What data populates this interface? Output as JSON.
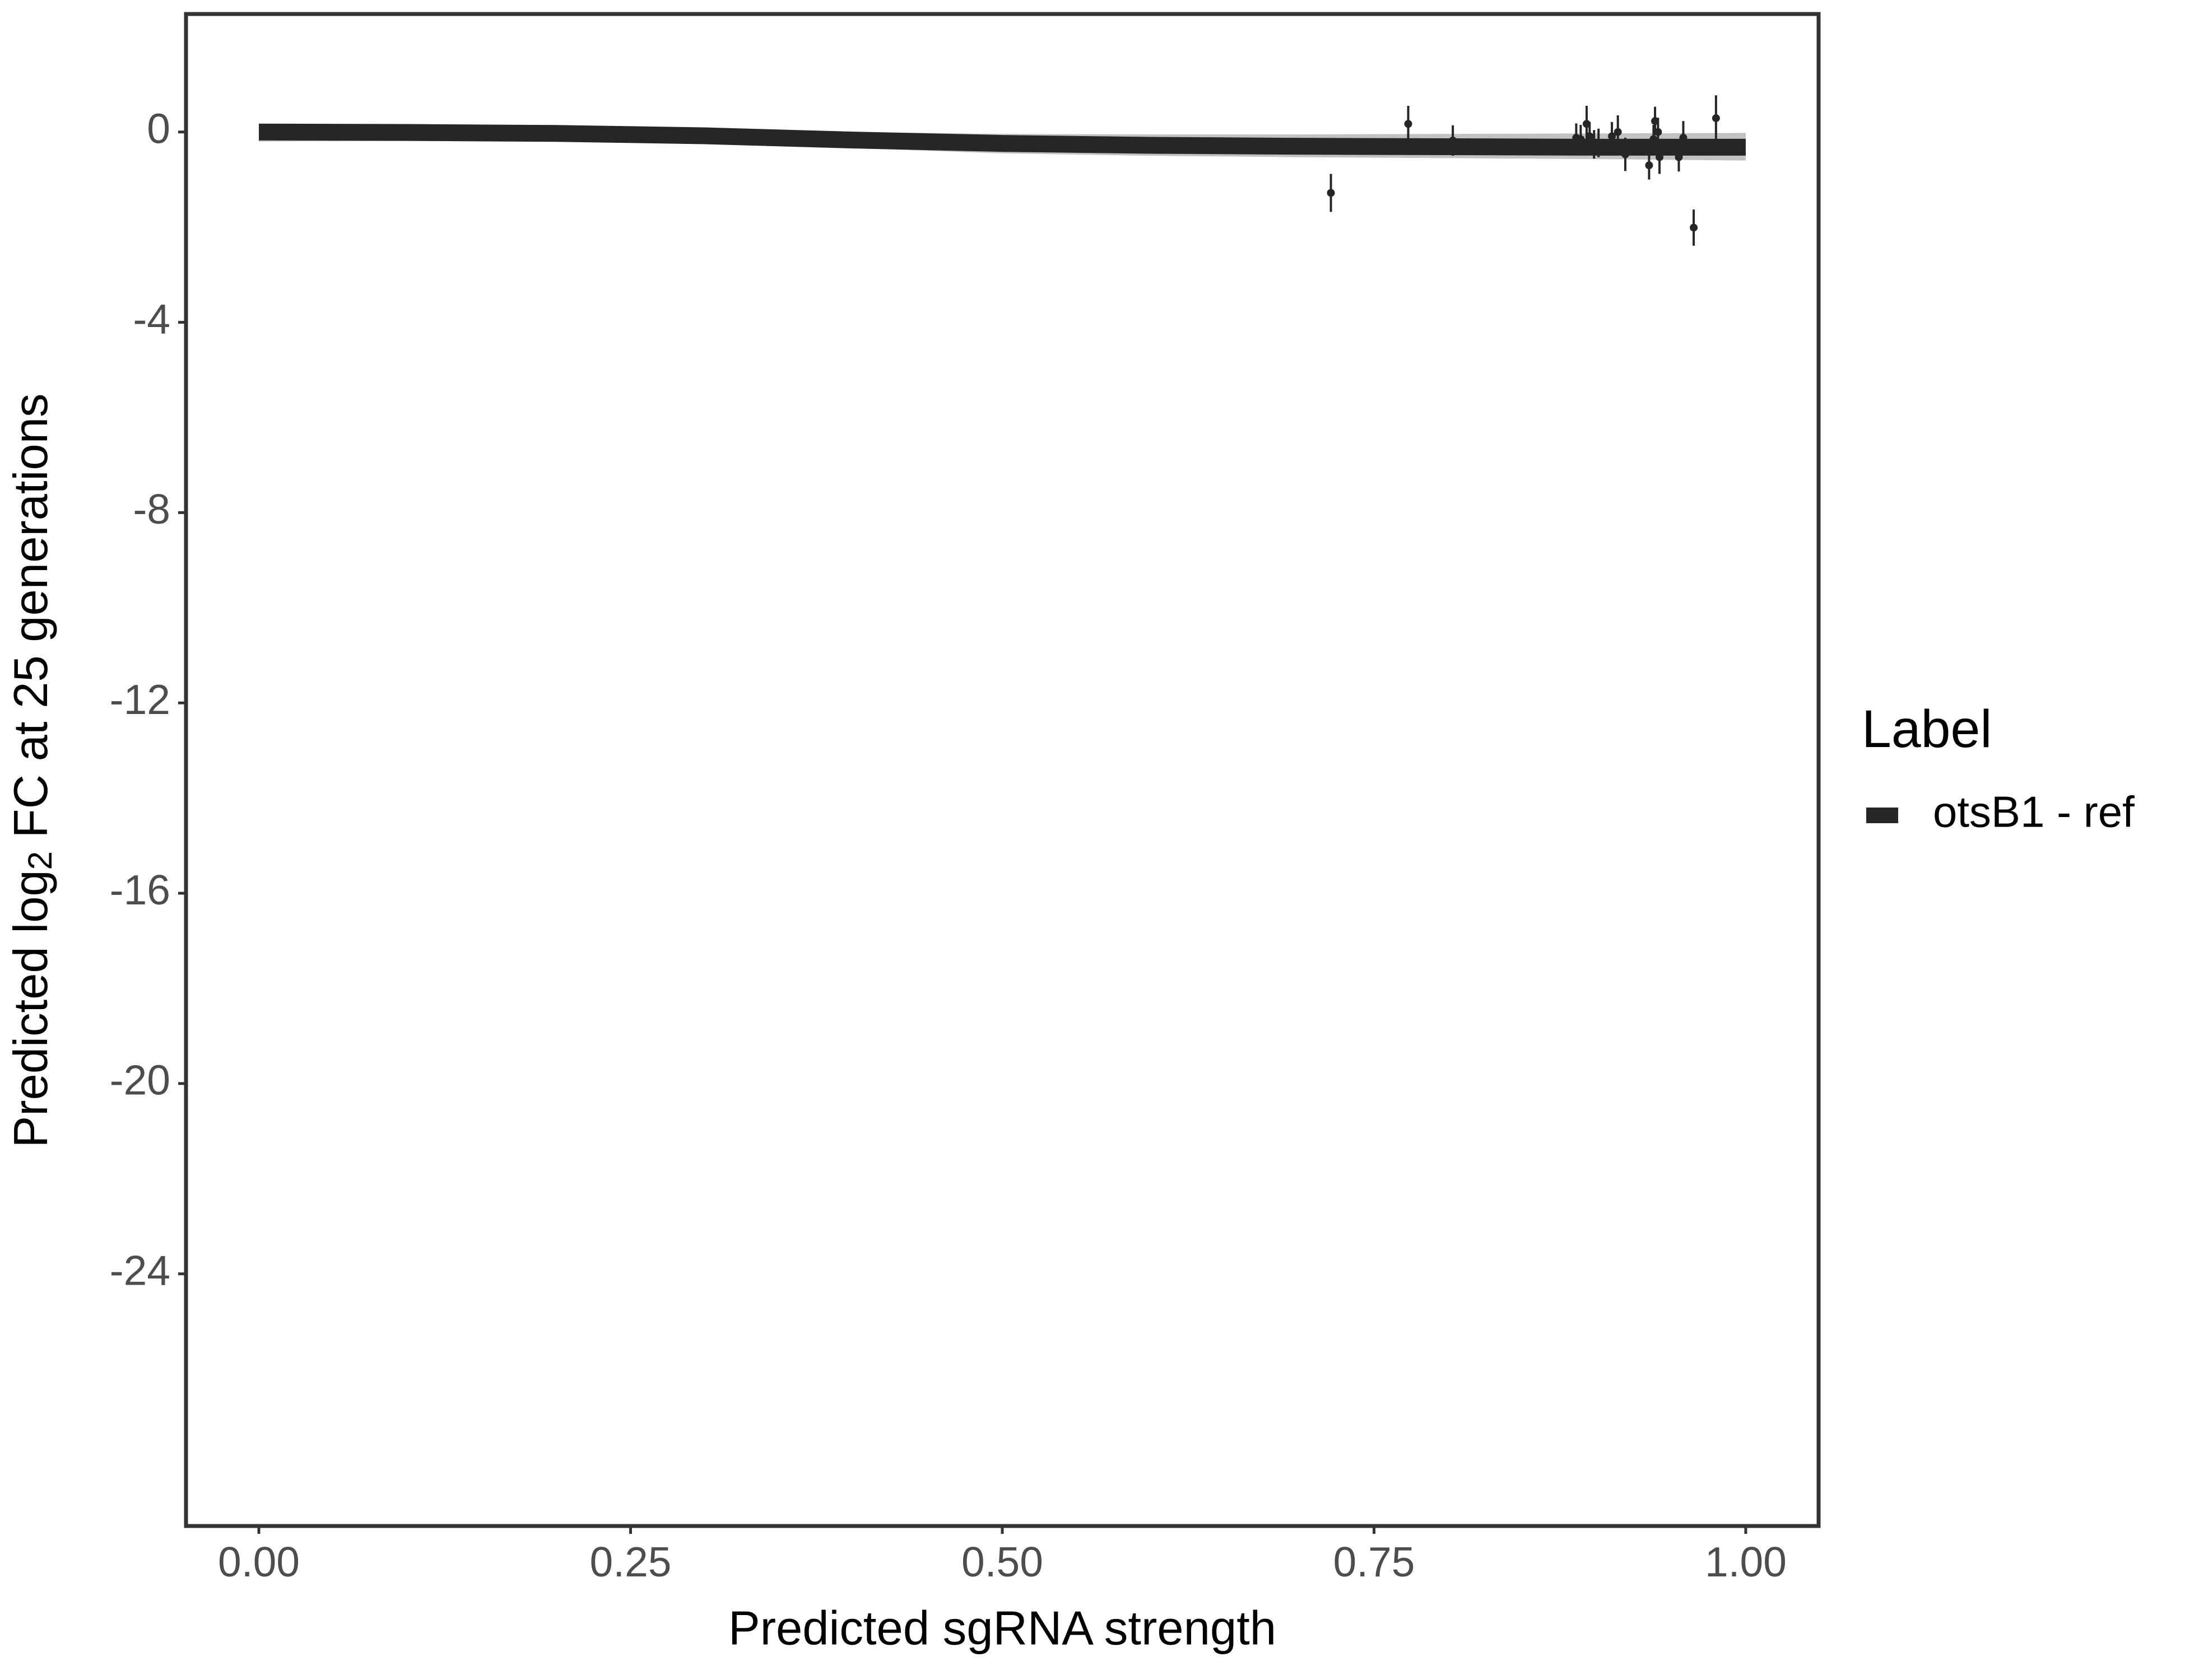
{
  "chart_data": {
    "type": "scatter",
    "xlabel": "Predicted sgRNA strength",
    "ylabel": [
      "Predicted  log",
      "2",
      " FC at 25 generations"
    ],
    "legend_title": "Label",
    "xlim": [
      -0.049,
      1.049
    ],
    "xticks": [
      {
        "value": 0,
        "label": "0.00"
      },
      {
        "value": 0.25,
        "label": "0.25"
      },
      {
        "value": 0.5,
        "label": "0.50"
      },
      {
        "value": 0.75,
        "label": "0.75"
      },
      {
        "value": 1,
        "label": "1.00"
      }
    ],
    "ylim": [
      -29.3,
      2.48
    ],
    "yticks": [
      0,
      -4,
      -8,
      -12,
      -16,
      -20,
      -24
    ],
    "series": [
      {
        "name": "otsB1 - ref",
        "color": "#262626",
        "x": [
          0.721,
          0.773,
          0.803,
          0.886,
          0.889,
          0.893,
          0.895,
          0.898,
          0.901,
          0.91,
          0.914,
          0.919,
          0.935,
          0.938,
          0.939,
          0.941,
          0.942,
          0.955,
          0.958,
          0.965,
          0.98
        ],
        "values": [
          -1.28,
          0.17,
          -0.18,
          -0.12,
          -0.15,
          0.17,
          -0.09,
          -0.26,
          -0.23,
          -0.09,
          0,
          -0.47,
          -0.7,
          -0.15,
          0.23,
          0,
          -0.53,
          -0.53,
          -0.12,
          -2.01,
          0.29
        ],
        "errors": [
          0.4,
          0.38,
          0.32,
          0.3,
          0.3,
          0.38,
          0.3,
          0.3,
          0.3,
          0.3,
          0.35,
          0.35,
          0.3,
          0.3,
          0.3,
          0.3,
          0.35,
          0.3,
          0.35,
          0.38,
          0.48
        ]
      }
    ],
    "fit": {
      "color": "#262626",
      "band_color": "#b3b3b3",
      "x": [
        0,
        0.1,
        0.2,
        0.3,
        0.4,
        0.5,
        0.6,
        0.7,
        0.8,
        0.9,
        1
      ],
      "values": [
        0,
        -0.01,
        -0.03,
        -0.08,
        -0.17,
        -0.24,
        -0.28,
        -0.3,
        -0.31,
        -0.32,
        -0.32
      ],
      "upper": [
        0.17,
        0.16,
        0.14,
        0.09,
        0,
        -0.04,
        -0.05,
        -0.05,
        -0.04,
        -0.03,
        -0.02
      ],
      "lower": [
        -0.2,
        -0.19,
        -0.2,
        -0.25,
        -0.34,
        -0.45,
        -0.5,
        -0.53,
        -0.55,
        -0.57,
        -0.6
      ]
    }
  }
}
